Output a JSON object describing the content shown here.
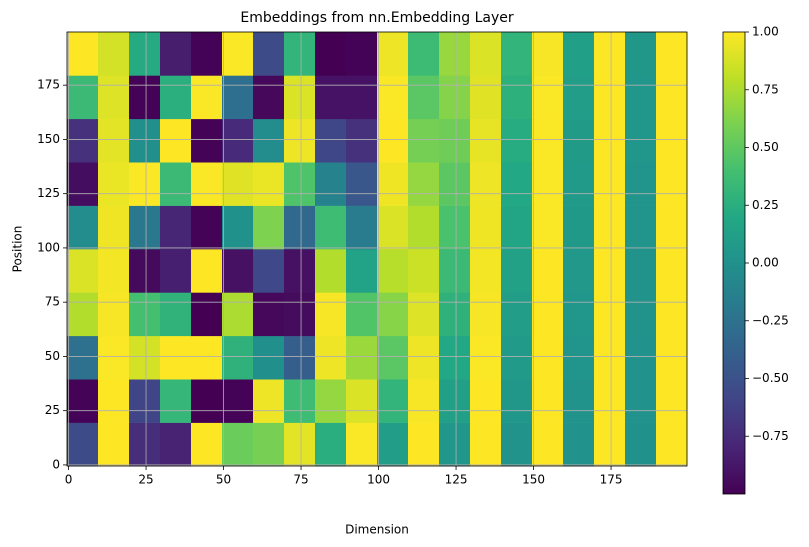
{
  "chart_data": {
    "type": "heatmap",
    "title": "Embeddings from nn.Embedding Layer",
    "xlabel": "Dimension",
    "ylabel": "Position",
    "xbins": [
      -0.5,
      9.5,
      19.5,
      29.5,
      39.5,
      49.5,
      59.5,
      69.5,
      79.5,
      89.5,
      99.5,
      109.5,
      119.5,
      129.5,
      139.5,
      149.5,
      159.5,
      169.5,
      179.5,
      189.5,
      199.5
    ],
    "ybins": [
      -0.5,
      19.5,
      39.5,
      59.5,
      79.5,
      99.5,
      119.5,
      139.5,
      159.5,
      179.5,
      199.5
    ],
    "z": [
      [
        -0.54,
        1.0,
        -0.74,
        -0.81,
        1.0,
        0.54,
        0.59,
        0.92,
        0.25,
        0.99,
        0.1,
        1.0,
        0.04,
        1.0,
        0.02,
        1.0,
        0.01,
        1.0,
        0.0,
        1.0
      ],
      [
        -0.99,
        1.0,
        -0.59,
        0.32,
        -1.0,
        -0.99,
        0.95,
        0.37,
        0.68,
        0.89,
        0.3,
        0.98,
        0.12,
        1.0,
        0.05,
        1.0,
        0.02,
        1.0,
        0.01,
        1.0
      ],
      [
        -0.26,
        0.99,
        0.87,
        1.0,
        1.0,
        0.28,
        -0.01,
        -0.41,
        0.95,
        0.7,
        0.48,
        0.95,
        0.2,
        0.99,
        0.08,
        1.0,
        0.03,
        1.0,
        0.01,
        1.0
      ],
      [
        0.77,
        0.98,
        0.4,
        0.29,
        -1.0,
        0.75,
        -0.96,
        -0.94,
        0.98,
        0.45,
        0.64,
        0.9,
        0.28,
        0.98,
        0.11,
        1.0,
        0.04,
        1.0,
        0.02,
        1.0
      ],
      [
        0.89,
        0.97,
        -0.95,
        -0.83,
        1.0,
        -0.91,
        -0.57,
        -0.91,
        0.77,
        0.15,
        0.78,
        0.84,
        0.35,
        0.97,
        0.14,
        1.0,
        0.06,
        1.0,
        0.02,
        1.0
      ],
      [
        -0.04,
        0.96,
        -0.2,
        -0.79,
        -0.99,
        0.0,
        0.61,
        -0.33,
        0.37,
        -0.17,
        0.89,
        0.77,
        0.42,
        0.96,
        0.17,
        0.99,
        0.07,
        1.0,
        0.03,
        1.0
      ],
      [
        -0.93,
        0.94,
        0.99,
        0.35,
        0.99,
        0.91,
        0.94,
        0.44,
        -0.12,
        -0.46,
        0.96,
        0.68,
        0.49,
        0.95,
        0.2,
        0.99,
        0.08,
        1.0,
        0.03,
        1.0
      ],
      [
        -0.72,
        0.92,
        -0.01,
        1.0,
        -0.99,
        -0.76,
        -0.04,
        0.95,
        -0.58,
        -0.72,
        1.0,
        0.58,
        0.56,
        0.93,
        0.23,
        0.99,
        0.09,
        1.0,
        0.04,
        1.0
      ],
      [
        0.35,
        0.9,
        -0.99,
        0.26,
        0.99,
        -0.28,
        -0.96,
        0.89,
        -0.9,
        -0.9,
        0.99,
        0.48,
        0.63,
        0.91,
        0.27,
        0.99,
        0.11,
        1.0,
        0.04,
        1.0
      ],
      [
        1.0,
        0.87,
        0.22,
        -0.84,
        -0.99,
        0.99,
        -0.55,
        0.3,
        -1.0,
        -0.99,
        0.95,
        0.36,
        0.69,
        0.89,
        0.3,
        0.98,
        0.12,
        1.0,
        0.05,
        1.0
      ]
    ],
    "xlim": [
      -0.5,
      199.5
    ],
    "ylim": [
      -0.5,
      199.5
    ],
    "xticks": [
      0,
      25,
      50,
      75,
      100,
      125,
      150,
      175
    ],
    "yticks": [
      0,
      25,
      50,
      75,
      100,
      125,
      150,
      175
    ],
    "grid": true,
    "colormap": "viridis",
    "clim": [
      -1,
      1
    ],
    "cticks": [
      {
        "value": -0.75,
        "label": "−0.75"
      },
      {
        "value": -0.5,
        "label": "−0.50"
      },
      {
        "value": -0.25,
        "label": "−0.25"
      },
      {
        "value": 0,
        "label": "0.00"
      },
      0.25,
      {
        "value": 0.5,
        "label": "0.50"
      },
      0.75,
      {
        "value": 1,
        "label": "1.00"
      }
    ]
  }
}
